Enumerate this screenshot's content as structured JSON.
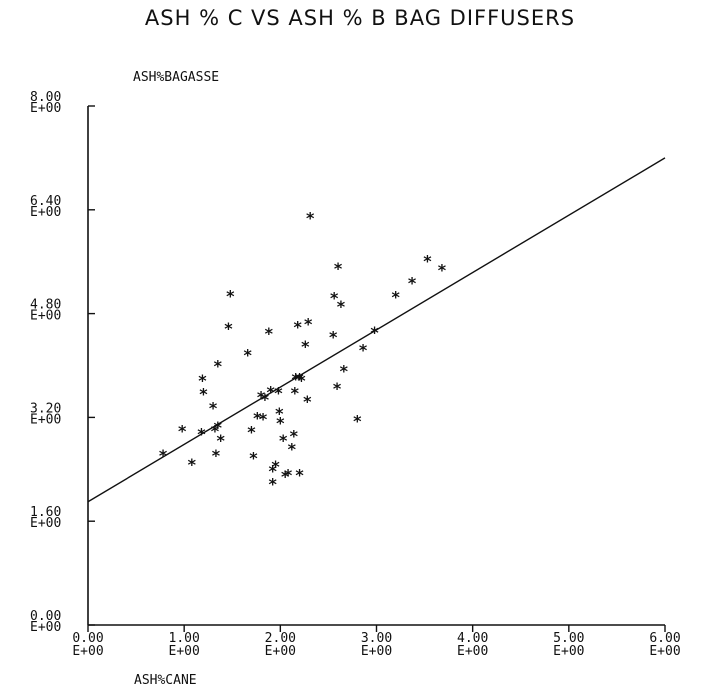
{
  "chart_data": {
    "type": "scatter",
    "title": "ASH % C VS ASH % B BAG DIFFUSERS",
    "xlabel": "ASH%CANE",
    "ylabel": "ASH%BAGASSE",
    "xlim": [
      0.0,
      6.0
    ],
    "ylim": [
      0.0,
      8.0
    ],
    "x_ticks": [
      {
        "v": 0,
        "l1": "0.00",
        "l2": "E+00"
      },
      {
        "v": 1,
        "l1": "1.00",
        "l2": "E+00"
      },
      {
        "v": 2,
        "l1": "2.00",
        "l2": "E+00"
      },
      {
        "v": 3,
        "l1": "3.00",
        "l2": "E+00"
      },
      {
        "v": 4,
        "l1": "4.00",
        "l2": "E+00"
      },
      {
        "v": 5,
        "l1": "5.00",
        "l2": "E+00"
      },
      {
        "v": 6,
        "l1": "6.00",
        "l2": "E+00"
      }
    ],
    "y_ticks": [
      {
        "v": 0,
        "l1": "0.00",
        "l2": "E+00"
      },
      {
        "v": 1.6,
        "l1": "1.60",
        "l2": "E+00"
      },
      {
        "v": 3.2,
        "l1": "3.20",
        "l2": "E+00"
      },
      {
        "v": 4.8,
        "l1": "4.80",
        "l2": "E+00"
      },
      {
        "v": 6.4,
        "l1": "6.40",
        "l2": "E+00"
      },
      {
        "v": 8.0,
        "l1": "8.00",
        "l2": "E+00"
      }
    ],
    "marker": "*",
    "points": [
      [
        0.78,
        2.62
      ],
      [
        0.98,
        3.0
      ],
      [
        1.08,
        2.48
      ],
      [
        1.18,
        2.95
      ],
      [
        1.19,
        3.78
      ],
      [
        1.2,
        3.57
      ],
      [
        1.3,
        3.35
      ],
      [
        1.32,
        3.0
      ],
      [
        1.33,
        2.62
      ],
      [
        1.35,
        3.05
      ],
      [
        1.35,
        4.0
      ],
      [
        1.38,
        2.85
      ],
      [
        1.46,
        4.58
      ],
      [
        1.48,
        5.08
      ],
      [
        1.66,
        4.17
      ],
      [
        1.7,
        2.98
      ],
      [
        1.72,
        2.58
      ],
      [
        1.76,
        3.2
      ],
      [
        1.8,
        3.52
      ],
      [
        1.82,
        3.18
      ],
      [
        1.84,
        3.48
      ],
      [
        1.88,
        4.5
      ],
      [
        1.9,
        3.6
      ],
      [
        1.92,
        2.38
      ],
      [
        1.92,
        2.18
      ],
      [
        1.95,
        2.45
      ],
      [
        1.98,
        3.58
      ],
      [
        1.99,
        3.27
      ],
      [
        2.0,
        3.12
      ],
      [
        2.03,
        2.85
      ],
      [
        2.05,
        2.3
      ],
      [
        2.08,
        2.32
      ],
      [
        2.12,
        2.72
      ],
      [
        2.14,
        2.92
      ],
      [
        2.15,
        3.58
      ],
      [
        2.16,
        3.8
      ],
      [
        2.18,
        4.6
      ],
      [
        2.2,
        3.8
      ],
      [
        2.22,
        3.78
      ],
      [
        2.2,
        2.32
      ],
      [
        2.26,
        4.3
      ],
      [
        2.28,
        3.45
      ],
      [
        2.29,
        4.65
      ],
      [
        2.31,
        6.28
      ],
      [
        2.55,
        4.45
      ],
      [
        2.56,
        5.05
      ],
      [
        2.59,
        3.65
      ],
      [
        2.6,
        5.5
      ],
      [
        2.63,
        4.92
      ],
      [
        2.66,
        3.92
      ],
      [
        2.8,
        3.15
      ],
      [
        2.86,
        4.25
      ],
      [
        2.98,
        4.52
      ],
      [
        3.2,
        5.06
      ],
      [
        3.37,
        5.28
      ],
      [
        3.53,
        5.62
      ],
      [
        3.68,
        5.48
      ]
    ],
    "fit_line": {
      "x": [
        0.0,
        6.0
      ],
      "y": [
        1.9,
        7.2
      ]
    }
  }
}
